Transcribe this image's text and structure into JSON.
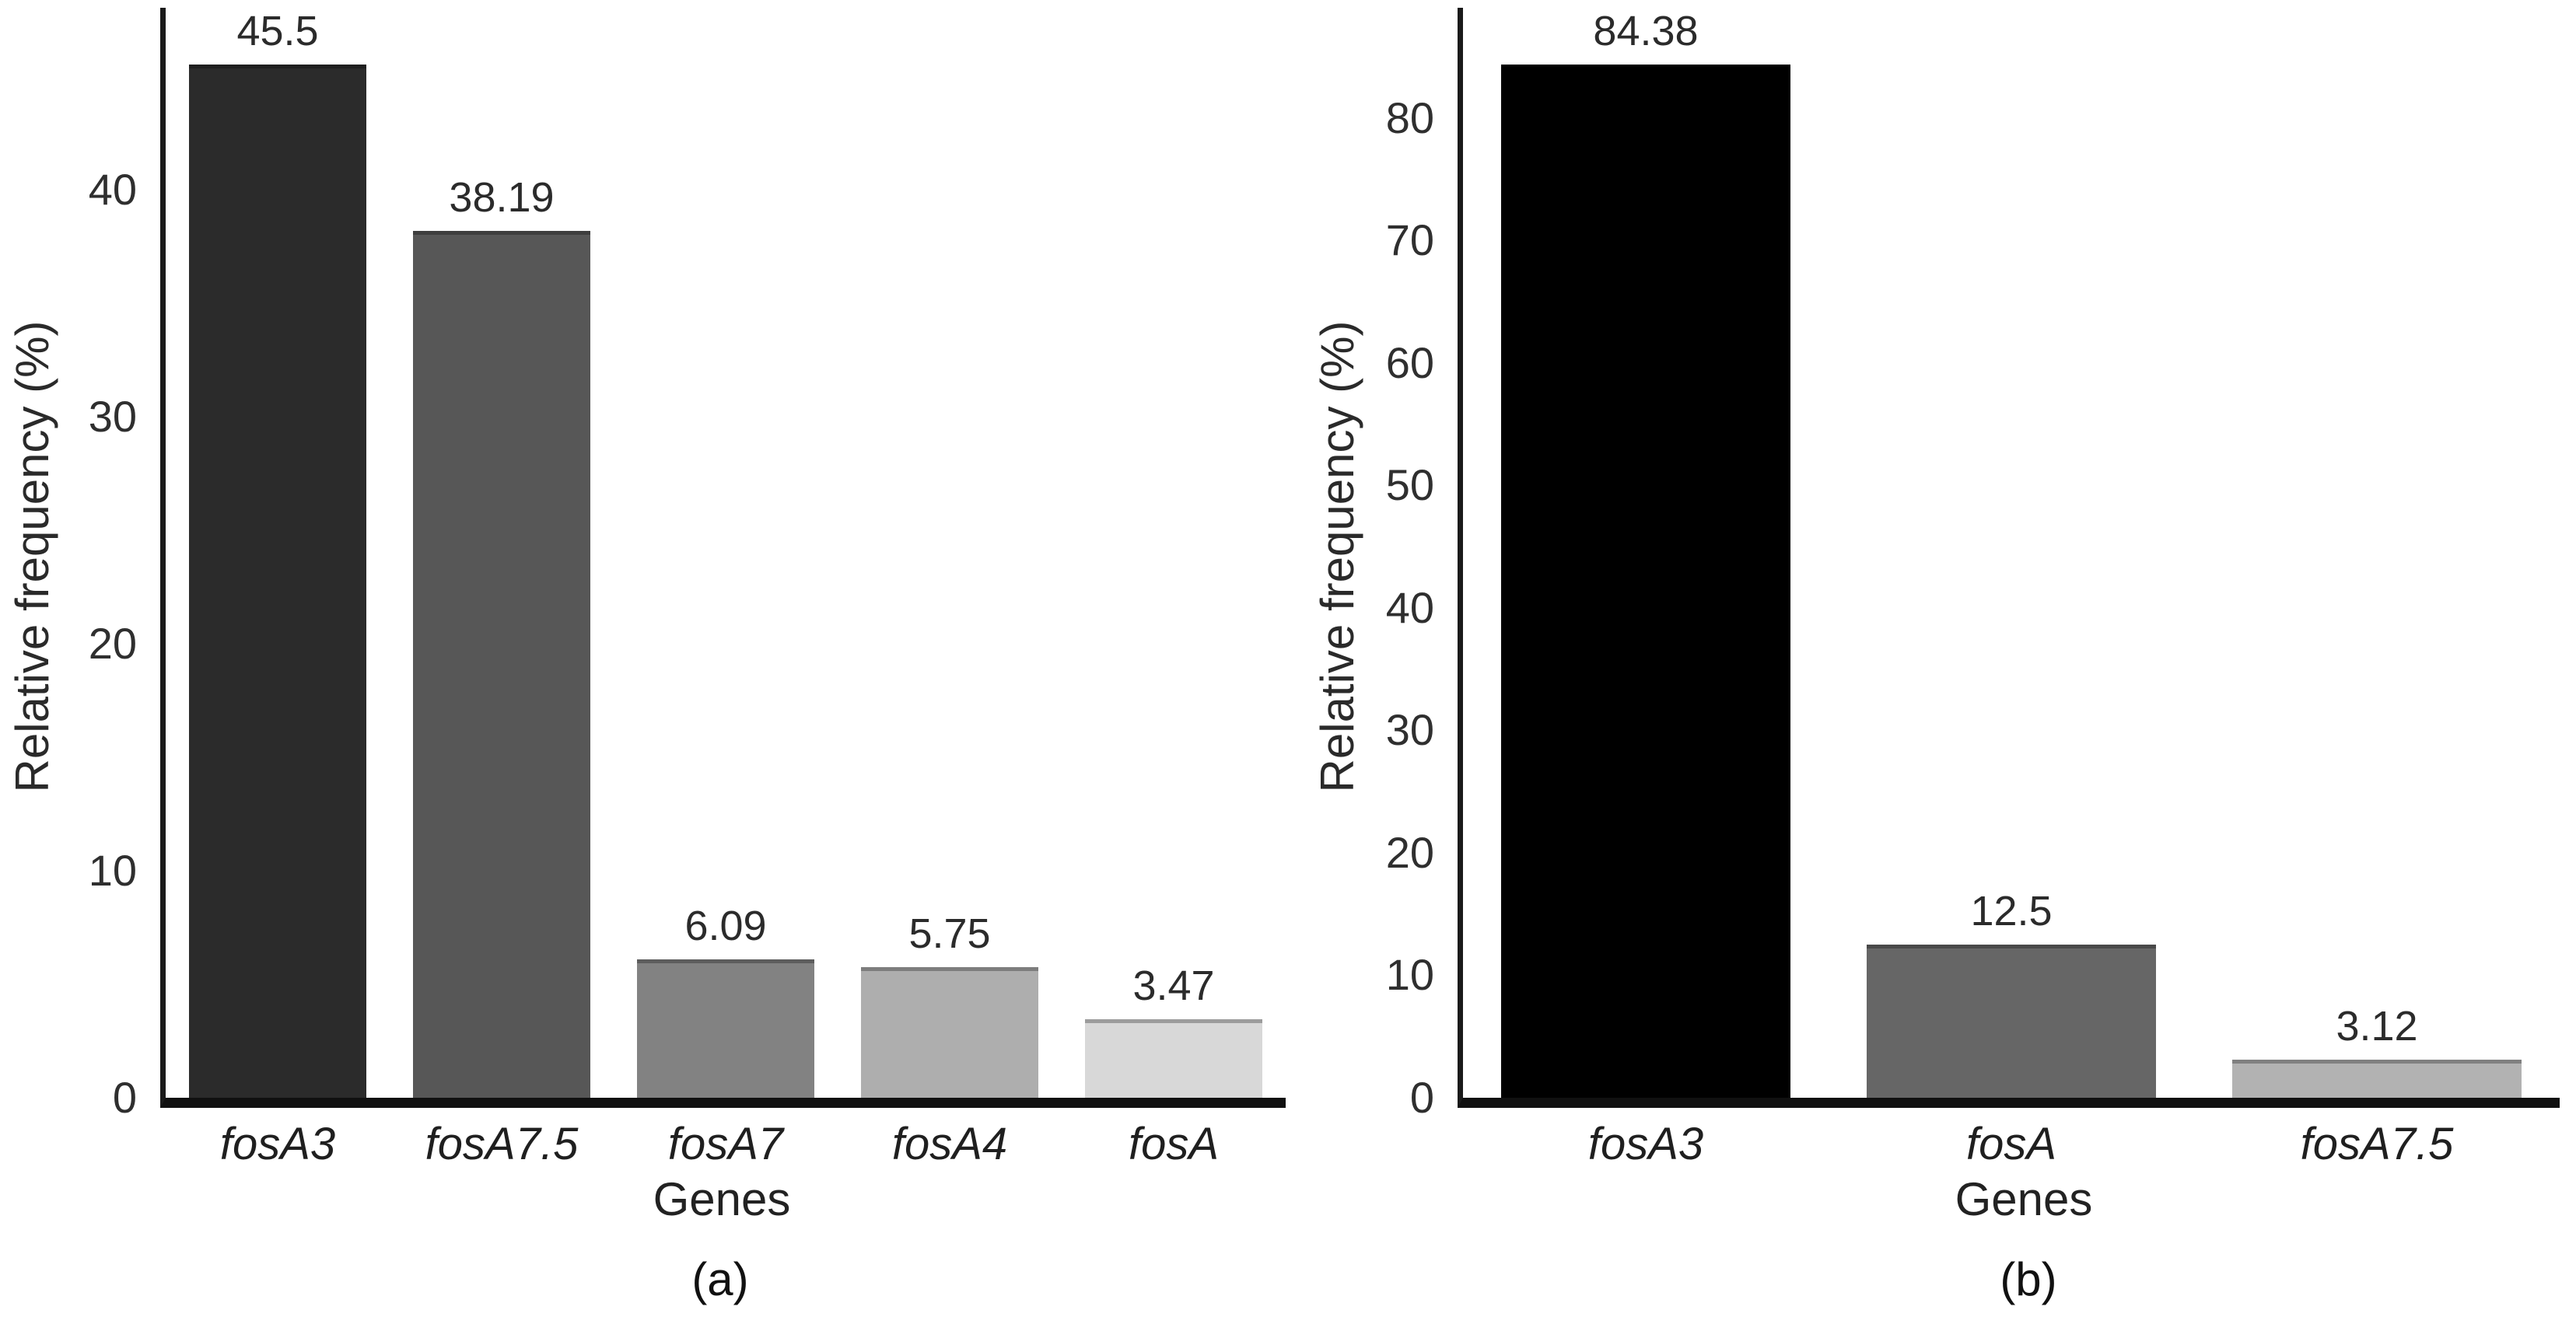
{
  "background": "#ffffff",
  "axis_color": "#1a1a1a",
  "text_color": "#2a2a2a",
  "chart_data": [
    {
      "type": "bar",
      "caption": "(a)",
      "title": "",
      "xlabel": "Genes",
      "ylabel": "Relative frequency (%)",
      "categories": [
        "fosA3",
        "fosA7.5",
        "fosA7",
        "fosA4",
        "fosA"
      ],
      "values": [
        45.5,
        38.19,
        6.09,
        5.75,
        3.47
      ],
      "value_labels": [
        "45.5",
        "38.19",
        "6.09",
        "5.75",
        "3.47"
      ],
      "bar_colors": [
        "#2b2b2b",
        "#575757",
        "#828282",
        "#aeaeae",
        "#d8d8d8"
      ],
      "ylim": [
        0,
        48
      ],
      "yticks": [
        0,
        10,
        20,
        30,
        40
      ],
      "grid": false,
      "legend": null,
      "category_style": "italic"
    },
    {
      "type": "bar",
      "caption": "(b)",
      "title": "",
      "xlabel": "Genes",
      "ylabel": "Relative frequency (%)",
      "categories": [
        "fosA3",
        "fosA",
        "fosA7.5"
      ],
      "values": [
        84.38,
        12.5,
        3.12
      ],
      "value_labels": [
        "84.38",
        "12.5",
        "3.12"
      ],
      "bar_colors": [
        "#000000",
        "#666666",
        "#b2b2b2"
      ],
      "ylim": [
        0,
        89
      ],
      "yticks": [
        0,
        10,
        20,
        30,
        40,
        50,
        60,
        70,
        80
      ],
      "grid": false,
      "legend": null,
      "category_style": "italic"
    }
  ]
}
